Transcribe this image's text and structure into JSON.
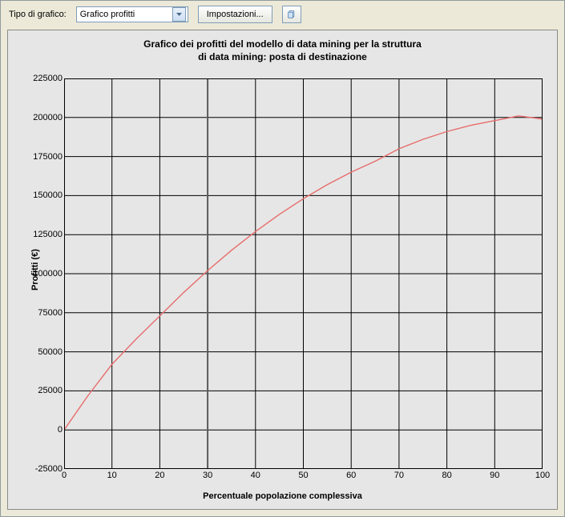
{
  "toolbar": {
    "type_label": "Tipo di grafico:",
    "dropdown_selected": "Grafico profitti",
    "settings_button": "Impostazioni...",
    "copy_icon_name": "copy-icon"
  },
  "chart": {
    "type": "line",
    "title_line1": "Grafico dei profitti del modello di data mining per la struttura",
    "title_line2": "di data mining: posta di destinazione",
    "xlabel": "Percentuale popolazione complessiva",
    "ylabel": "Profitti (€)",
    "xlim": [
      0,
      100
    ],
    "ylim": [
      -25000,
      225000
    ],
    "xtick_step": 10,
    "ytick_step": 25000,
    "xticks": [
      0,
      10,
      20,
      30,
      40,
      50,
      60,
      70,
      80,
      90,
      100
    ],
    "yticks": [
      -25000,
      0,
      25000,
      50000,
      75000,
      100000,
      125000,
      150000,
      175000,
      200000,
      225000
    ],
    "background_color": "#e6e6e6",
    "grid_color": "#000000",
    "border_color": "#000000",
    "line_color": "#e86c6c",
    "line_width": 1.4,
    "marker_line_x": 30,
    "marker_line_color": "#5a5a5a",
    "marker_line_width": 2,
    "series": {
      "x": [
        0,
        5,
        10,
        15,
        20,
        25,
        30,
        35,
        40,
        45,
        50,
        55,
        60,
        65,
        70,
        75,
        80,
        85,
        90,
        95,
        100
      ],
      "y": [
        0,
        22000,
        42000,
        58000,
        73000,
        88000,
        102000,
        115000,
        127000,
        138000,
        148000,
        157000,
        165000,
        172000,
        180000,
        186000,
        191000,
        195000,
        198000,
        201000,
        199000
      ]
    },
    "tick_fontsize": 11,
    "title_fontsize": 12,
    "label_fontsize": 11
  }
}
